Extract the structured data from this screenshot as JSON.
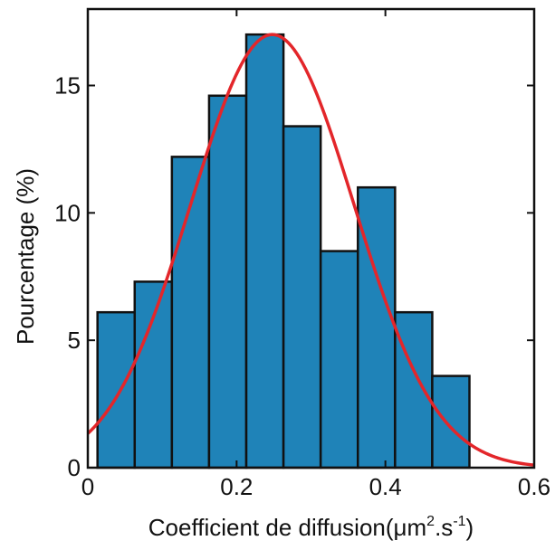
{
  "chart_data": {
    "type": "bar",
    "title": "",
    "xlabel": {
      "main": "Coefficient de diffusion(μm",
      "sup1": "2",
      "mid": ".s",
      "sup2": "-1",
      "end": ")"
    },
    "ylabel": "Pourcentage (%)",
    "xlim": [
      0,
      0.6
    ],
    "ylim": [
      0,
      18
    ],
    "xticks": [
      {
        "value": 0,
        "label": "0"
      },
      {
        "value": 0.2,
        "label": "0.2"
      },
      {
        "value": 0.4,
        "label": "0.4"
      },
      {
        "value": 0.6,
        "label": "0.6"
      }
    ],
    "yticks": [
      {
        "value": 0,
        "label": "0"
      },
      {
        "value": 5,
        "label": "5"
      },
      {
        "value": 10,
        "label": "10"
      },
      {
        "value": 15,
        "label": "15"
      }
    ],
    "bin_width": 0.05,
    "bins": [
      {
        "start": 0.013,
        "value": 6.1
      },
      {
        "start": 0.063,
        "value": 7.3
      },
      {
        "start": 0.113,
        "value": 12.2
      },
      {
        "start": 0.163,
        "value": 14.6
      },
      {
        "start": 0.213,
        "value": 17.0
      },
      {
        "start": 0.263,
        "value": 13.4
      },
      {
        "start": 0.313,
        "value": 8.5
      },
      {
        "start": 0.363,
        "value": 11.0
      },
      {
        "start": 0.413,
        "value": 6.1
      },
      {
        "start": 0.463,
        "value": 3.6
      }
    ],
    "fit_curve": {
      "type": "gaussian",
      "peak": 17.0,
      "mean": 0.248,
      "sigma": 0.11
    },
    "grid": false,
    "colors": {
      "bar": "#1f83b8",
      "bar_edge": "#111111",
      "curve": "#e3262a"
    }
  }
}
